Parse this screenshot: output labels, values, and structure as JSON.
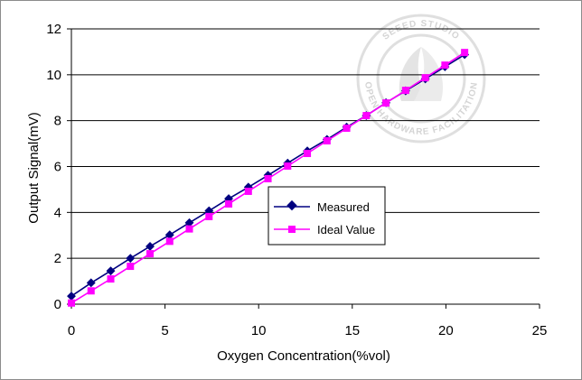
{
  "chart_data": {
    "type": "line",
    "title": "",
    "xlabel": "Oxygen Concentration(%vol)",
    "ylabel": "Output Signal(mV)",
    "xlim": [
      0,
      25
    ],
    "ylim": [
      0,
      12
    ],
    "xticks": [
      0,
      5,
      10,
      15,
      20,
      25
    ],
    "yticks": [
      0,
      2,
      4,
      6,
      8,
      10,
      12
    ],
    "grid": "horizontal",
    "legend_position": "center-right",
    "series": [
      {
        "name": "Measured",
        "color": "#000080",
        "marker": "diamond",
        "x": [
          0,
          1.05,
          2.1,
          3.15,
          4.2,
          5.25,
          6.3,
          7.35,
          8.4,
          9.45,
          10.5,
          11.55,
          12.6,
          13.65,
          14.7,
          15.75,
          16.8,
          17.85,
          18.9,
          19.95,
          21
        ],
        "y": [
          0.35,
          0.93,
          1.45,
          2.0,
          2.52,
          3.02,
          3.55,
          4.07,
          4.6,
          5.1,
          5.62,
          6.15,
          6.68,
          7.18,
          7.72,
          8.22,
          8.78,
          9.3,
          9.82,
          10.35,
          10.88
        ]
      },
      {
        "name": "Ideal Value",
        "color": "#ff00ff",
        "marker": "square",
        "x": [
          0,
          1.05,
          2.1,
          3.15,
          4.2,
          5.25,
          6.3,
          7.35,
          8.4,
          9.45,
          10.5,
          11.55,
          12.6,
          13.65,
          14.7,
          15.75,
          16.8,
          17.85,
          18.9,
          19.95,
          21
        ],
        "y": [
          0.05,
          0.58,
          1.1,
          1.65,
          2.2,
          2.74,
          3.28,
          3.82,
          4.37,
          4.92,
          5.47,
          6.02,
          6.57,
          7.12,
          7.67,
          8.22,
          8.77,
          9.32,
          9.87,
          10.42,
          10.97
        ]
      }
    ]
  },
  "watermark": {
    "top_text": "SEEED STUDIO",
    "bottom_text": "OPEN HARDWARE FACILITATION"
  }
}
